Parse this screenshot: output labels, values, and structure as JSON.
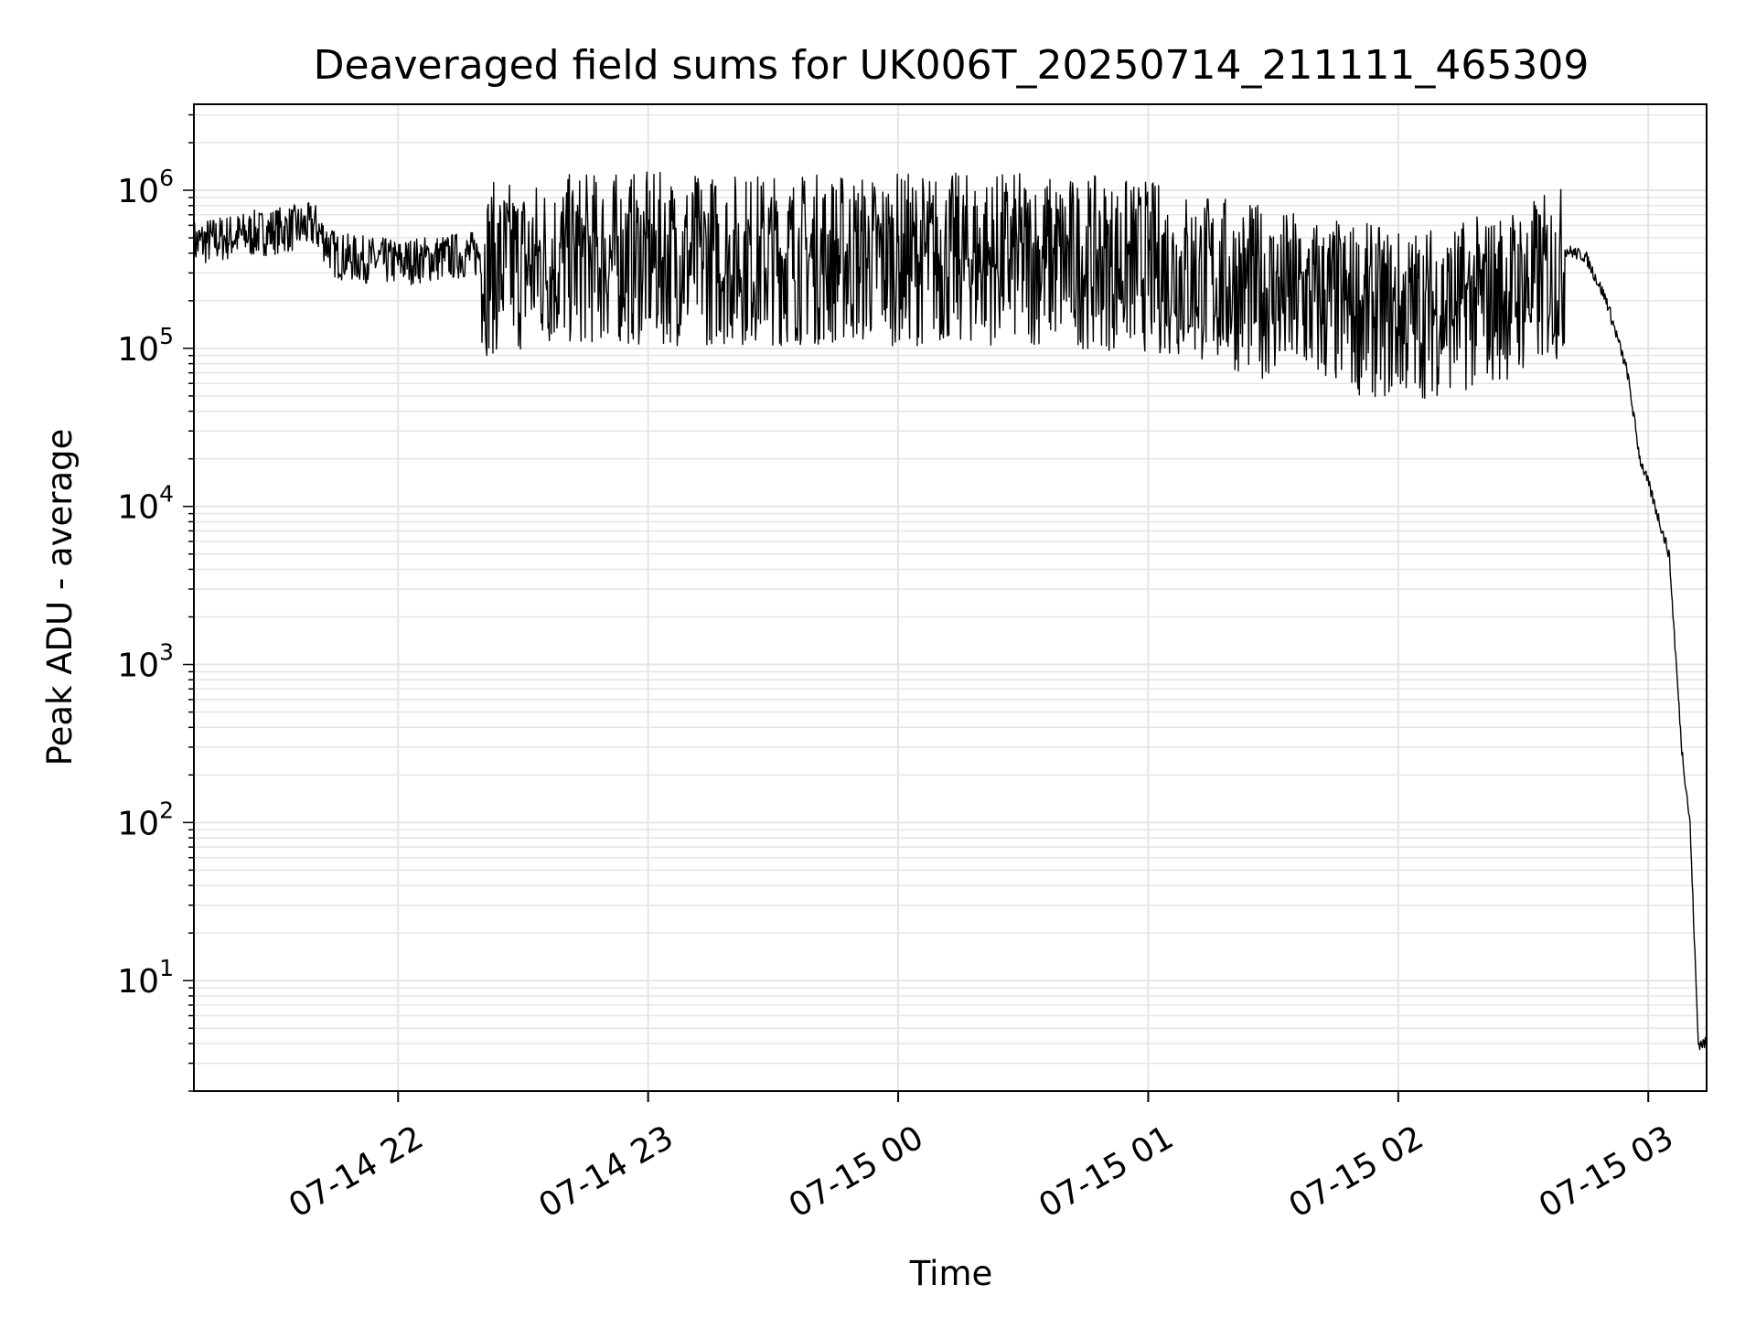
{
  "chart_data": {
    "type": "line",
    "title": "Deaveraged field sums for UK006T_20250714_211111_465309",
    "xlabel": "Time",
    "ylabel": "Peak ADU - average",
    "yscale": "log",
    "grid": true,
    "xlim": [
      "2025-07-14 21:11",
      "2025-07-15 03:14"
    ],
    "ylim": [
      2,
      3500000
    ],
    "x_ticks": [
      {
        "value": "2025-07-14 22:00",
        "label": "07-14 22"
      },
      {
        "value": "2025-07-14 23:00",
        "label": "07-14 23"
      },
      {
        "value": "2025-07-15 00:00",
        "label": "07-15 00"
      },
      {
        "value": "2025-07-15 01:00",
        "label": "07-15 01"
      },
      {
        "value": "2025-07-15 02:00",
        "label": "07-15 02"
      },
      {
        "value": "2025-07-15 03:00",
        "label": "07-15 03"
      }
    ],
    "y_ticks": [
      {
        "value": 10,
        "base": "10",
        "exp": "1"
      },
      {
        "value": 100,
        "base": "10",
        "exp": "2"
      },
      {
        "value": 1000,
        "base": "10",
        "exp": "3"
      },
      {
        "value": 10000,
        "base": "10",
        "exp": "4"
      },
      {
        "value": 100000,
        "base": "10",
        "exp": "5"
      },
      {
        "value": 1000000,
        "base": "10",
        "exp": "6"
      }
    ],
    "line_color": "#000000",
    "grid_color": "#e5e5e5",
    "series": [
      {
        "x": [
          "2025-07-14 21:11",
          "2025-07-14 21:20",
          "2025-07-14 21:30",
          "2025-07-14 21:40",
          "2025-07-14 21:45",
          "2025-07-14 21:50",
          "2025-07-14 22:00",
          "2025-07-14 22:15",
          "2025-07-14 22:30",
          "2025-07-14 22:45",
          "2025-07-14 23:00",
          "2025-07-14 23:30",
          "2025-07-15 00:00",
          "2025-07-15 00:30",
          "2025-07-15 01:00",
          "2025-07-15 01:30",
          "2025-07-15 02:00",
          "2025-07-15 02:15",
          "2025-07-15 02:30",
          "2025-07-15 02:40",
          "2025-07-15 02:45",
          "2025-07-15 02:50",
          "2025-07-15 02:55",
          "2025-07-15 02:58",
          "2025-07-15 03:00",
          "2025-07-15 03:05",
          "2025-07-15 03:08",
          "03:10",
          "2025-07-15 03:11",
          "2025-07-15 03:12",
          "2025-07-15 03:14"
        ],
        "y": [
          500000,
          550000,
          600000,
          650000,
          420000,
          400000,
          380000,
          420000,
          450000,
          500000,
          500000,
          500000,
          500000,
          500000,
          450000,
          300000,
          220000,
          250000,
          320000,
          420000,
          380000,
          200000,
          70000,
          20000,
          14000,
          5000,
          300,
          100,
          20,
          4,
          4
        ]
      }
    ]
  }
}
